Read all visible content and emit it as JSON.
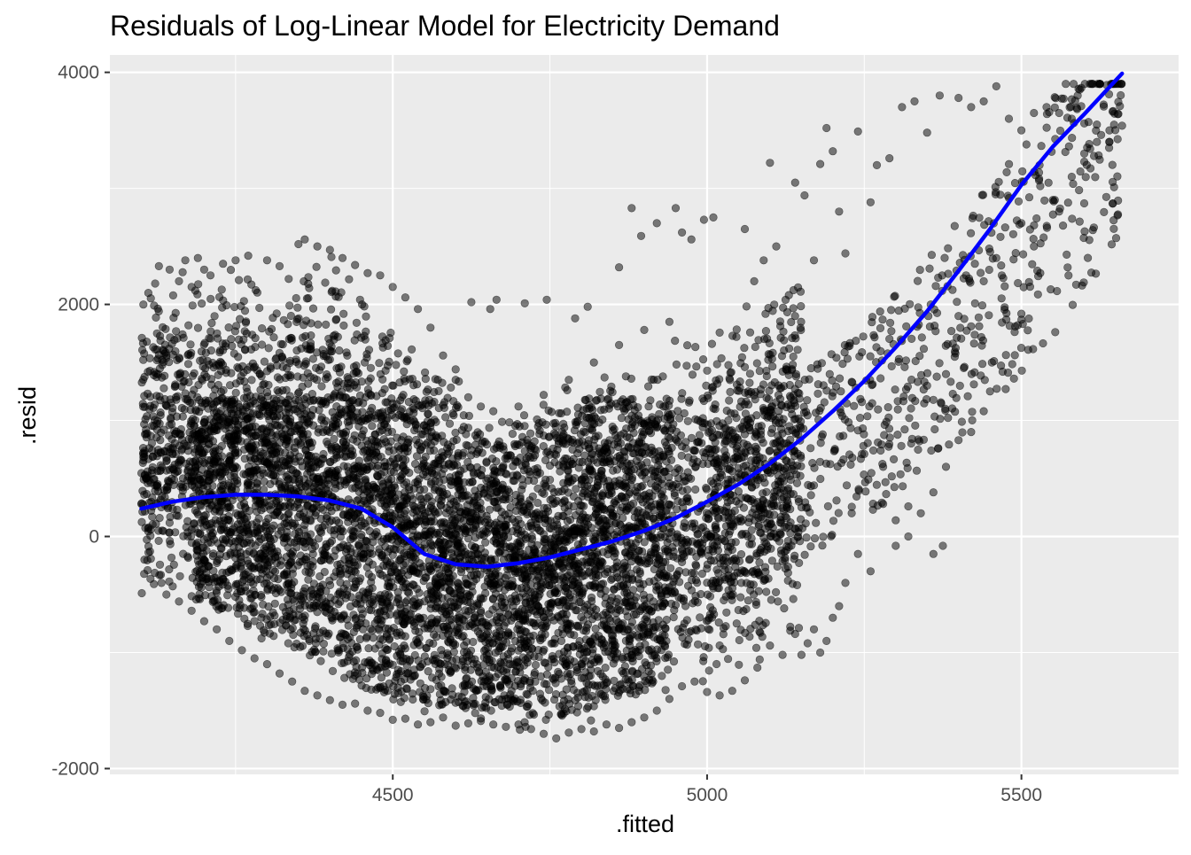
{
  "chart_data": {
    "type": "scatter",
    "title": "Residuals of Log-Linear Model for Electricity Demand",
    "xlabel": ".fitted",
    "ylabel": ".resid",
    "xlim": [
      4050,
      5750
    ],
    "ylim": [
      -2050,
      4150
    ],
    "x_ticks": [
      4500,
      5000,
      5500
    ],
    "y_ticks": [
      -2000,
      0,
      2000,
      4000
    ],
    "x_minor": [
      4250,
      4750,
      5250
    ],
    "y_minor": [
      -1000,
      1000,
      3000
    ],
    "grid": true,
    "background": "#EBEBEB",
    "point_color": "#000000",
    "point_opacity": 0.5,
    "point_count_estimate": 35000,
    "density_note": "Dense cloud: fitted 4100-5100; residuals ranging about -1700 to 2500, upper edge falling toward 4650 then rising; sparse tail 5000-5660 rising to residuals near 3900.",
    "series": [
      {
        "name": "",
        "type": "scatter",
        "points": [
          [
            4100,
            280
          ],
          [
            4105,
            -200
          ],
          [
            4110,
            460
          ],
          [
            4115,
            60
          ],
          [
            4120,
            1390
          ],
          [
            4122,
            2180
          ],
          [
            4125,
            1750
          ],
          [
            4128,
            2330
          ],
          [
            4130,
            830
          ],
          [
            4132,
            -400
          ],
          [
            4140,
            1560
          ],
          [
            4145,
            2300
          ],
          [
            4150,
            -430
          ],
          [
            4155,
            1200
          ],
          [
            4160,
            2200
          ],
          [
            4170,
            2380
          ],
          [
            4175,
            1820
          ],
          [
            4180,
            2150
          ],
          [
            4190,
            2400
          ],
          [
            4200,
            2300
          ],
          [
            4210,
            2250
          ],
          [
            4230,
            2350
          ],
          [
            4250,
            2380
          ],
          [
            4270,
            2420
          ],
          [
            4300,
            2380
          ],
          [
            4320,
            2330
          ],
          [
            4350,
            2520
          ],
          [
            4360,
            2560
          ],
          [
            4380,
            2500
          ],
          [
            4400,
            2470
          ],
          [
            4420,
            2400
          ],
          [
            4440,
            2340
          ],
          [
            4460,
            2270
          ],
          [
            4480,
            2250
          ],
          [
            4500,
            2150
          ],
          [
            4520,
            2060
          ],
          [
            4540,
            1960
          ],
          [
            4560,
            1800
          ],
          [
            4580,
            1560
          ],
          [
            4600,
            1350
          ],
          [
            4620,
            1200
          ],
          [
            4640,
            1120
          ],
          [
            4660,
            1080
          ],
          [
            4700,
            1120
          ],
          [
            4740,
            1220
          ],
          [
            4780,
            1350
          ],
          [
            4820,
            1500
          ],
          [
            4860,
            1650
          ],
          [
            4900,
            1780
          ],
          [
            4940,
            1850
          ],
          [
            4600,
            1440
          ],
          [
            4625,
            2020
          ],
          [
            4655,
            1960
          ],
          [
            4665,
            2040
          ],
          [
            4710,
            2010
          ],
          [
            4745,
            2040
          ],
          [
            4790,
            1880
          ],
          [
            4810,
            1980
          ],
          [
            4860,
            2320
          ],
          [
            4880,
            2830
          ],
          [
            4895,
            2590
          ],
          [
            4920,
            2700
          ],
          [
            4950,
            2830
          ],
          [
            4960,
            2620
          ],
          [
            4975,
            2560
          ],
          [
            4995,
            2730
          ],
          [
            5010,
            2750
          ],
          [
            5060,
            2650
          ],
          [
            5075,
            2200
          ],
          [
            5090,
            2380
          ],
          [
            5100,
            3220
          ],
          [
            5110,
            2500
          ],
          [
            5130,
            2080
          ],
          [
            5140,
            3050
          ],
          [
            5155,
            2940
          ],
          [
            5170,
            2380
          ],
          [
            5180,
            3210
          ],
          [
            5190,
            3520
          ],
          [
            5200,
            3320
          ],
          [
            5210,
            2800
          ],
          [
            5220,
            2440
          ],
          [
            5240,
            3490
          ],
          [
            5260,
            2880
          ],
          [
            5270,
            3200
          ],
          [
            5290,
            3260
          ],
          [
            5310,
            3700
          ],
          [
            5330,
            3750
          ],
          [
            5350,
            3480
          ],
          [
            5370,
            3800
          ],
          [
            5400,
            3780
          ],
          [
            5420,
            3700
          ],
          [
            5440,
            3750
          ],
          [
            5460,
            3880
          ],
          [
            5480,
            3600
          ],
          [
            5500,
            3500
          ],
          [
            5520,
            3650
          ],
          [
            5540,
            3700
          ],
          [
            5560,
            3650
          ],
          [
            5580,
            3600
          ],
          [
            5600,
            3560
          ],
          [
            5620,
            3550
          ],
          [
            5640,
            3500
          ],
          [
            5660,
            3540
          ],
          [
            5640,
            3400
          ],
          [
            5600,
            3300
          ],
          [
            5580,
            3100
          ],
          [
            5550,
            2900
          ],
          [
            5520,
            2500
          ],
          [
            5500,
            1920
          ],
          [
            5490,
            1810
          ],
          [
            5470,
            1420
          ],
          [
            5450,
            1250
          ],
          [
            5440,
            1080
          ],
          [
            5420,
            900
          ],
          [
            5400,
            830
          ],
          [
            5380,
            600
          ],
          [
            5360,
            380
          ],
          [
            5340,
            200
          ],
          [
            5320,
            0
          ],
          [
            5300,
            -80
          ],
          [
            5280,
            280
          ],
          [
            5260,
            -300
          ],
          [
            5240,
            -150
          ],
          [
            5230,
            200
          ],
          [
            5220,
            -400
          ],
          [
            5210,
            -600
          ],
          [
            5200,
            -700
          ],
          [
            5190,
            -900
          ],
          [
            5180,
            -1000
          ],
          [
            5170,
            -800
          ],
          [
            5160,
            -920
          ],
          [
            5150,
            -1020
          ],
          [
            5140,
            -840
          ],
          [
            5120,
            -1020
          ],
          [
            5100,
            -940
          ],
          [
            5080,
            -1130
          ],
          [
            5060,
            -1240
          ],
          [
            5040,
            -1330
          ],
          [
            5020,
            -1370
          ],
          [
            5000,
            -1340
          ],
          [
            4980,
            -1250
          ],
          [
            4960,
            -1290
          ],
          [
            4940,
            -1400
          ],
          [
            4920,
            -1500
          ],
          [
            4900,
            -1560
          ],
          [
            4880,
            -1600
          ],
          [
            4860,
            -1650
          ],
          [
            4840,
            -1620
          ],
          [
            4820,
            -1680
          ],
          [
            4800,
            -1660
          ],
          [
            4780,
            -1690
          ],
          [
            4760,
            -1740
          ],
          [
            4740,
            -1700
          ],
          [
            4720,
            -1660
          ],
          [
            4700,
            -1620
          ],
          [
            4680,
            -1640
          ],
          [
            4660,
            -1620
          ],
          [
            4640,
            -1590
          ],
          [
            4620,
            -1610
          ],
          [
            4600,
            -1630
          ],
          [
            4580,
            -1560
          ],
          [
            4560,
            -1600
          ],
          [
            4540,
            -1620
          ],
          [
            4520,
            -1570
          ],
          [
            4500,
            -1580
          ],
          [
            4480,
            -1520
          ],
          [
            4460,
            -1500
          ],
          [
            4440,
            -1440
          ],
          [
            4420,
            -1450
          ],
          [
            4400,
            -1410
          ],
          [
            4380,
            -1370
          ],
          [
            4360,
            -1330
          ],
          [
            4340,
            -1250
          ],
          [
            4320,
            -1180
          ],
          [
            4300,
            -1100
          ],
          [
            4280,
            -1050
          ],
          [
            4260,
            -980
          ],
          [
            4240,
            -900
          ],
          [
            4220,
            -800
          ],
          [
            4200,
            -730
          ],
          [
            4180,
            -640
          ],
          [
            4160,
            -560
          ],
          [
            4140,
            -500
          ],
          [
            4120,
            -410
          ],
          [
            4110,
            -290
          ],
          [
            5375,
            -80
          ],
          [
            5360,
            -150
          ],
          [
            5320,
            260
          ],
          [
            5300,
            140
          ],
          [
            5280,
            600
          ],
          [
            5350,
            1300
          ],
          [
            5380,
            1400
          ],
          [
            5400,
            1900
          ],
          [
            5440,
            2200
          ],
          [
            5460,
            2400
          ],
          [
            5500,
            2700
          ],
          [
            5530,
            3020
          ],
          [
            5560,
            2800
          ],
          [
            5600,
            3230
          ],
          [
            5620,
            3400
          ]
        ]
      },
      {
        "name": "",
        "type": "line",
        "color": "#0000FF",
        "points": [
          [
            4100,
            240
          ],
          [
            4150,
            300
          ],
          [
            4200,
            340
          ],
          [
            4250,
            360
          ],
          [
            4300,
            360
          ],
          [
            4350,
            345
          ],
          [
            4400,
            310
          ],
          [
            4450,
            240
          ],
          [
            4500,
            80
          ],
          [
            4550,
            -150
          ],
          [
            4600,
            -240
          ],
          [
            4650,
            -260
          ],
          [
            4700,
            -230
          ],
          [
            4750,
            -180
          ],
          [
            4800,
            -110
          ],
          [
            4850,
            -40
          ],
          [
            4900,
            50
          ],
          [
            4950,
            160
          ],
          [
            5000,
            300
          ],
          [
            5050,
            450
          ],
          [
            5100,
            630
          ],
          [
            5150,
            840
          ],
          [
            5200,
            1080
          ],
          [
            5250,
            1340
          ],
          [
            5300,
            1630
          ],
          [
            5350,
            1940
          ],
          [
            5400,
            2290
          ],
          [
            5450,
            2650
          ],
          [
            5500,
            3030
          ],
          [
            5550,
            3360
          ],
          [
            5600,
            3640
          ],
          [
            5660,
            3990
          ]
        ]
      }
    ]
  }
}
